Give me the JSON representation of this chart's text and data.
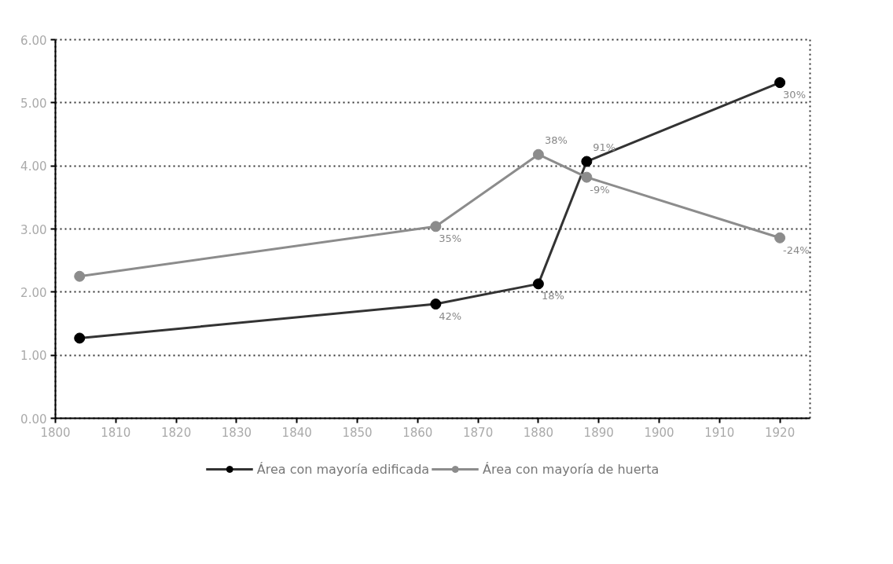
{
  "chart_data": {
    "type": "line",
    "x": [
      1804,
      1863,
      1880,
      1888,
      1920
    ],
    "series": [
      {
        "name": "Área con mayoría edificada",
        "color": "#333333",
        "values": [
          1.27,
          1.81,
          2.13,
          4.07,
          5.32
        ]
      },
      {
        "name": "Área con mayoría de huerta",
        "color": "#8c8c8c",
        "values": [
          2.25,
          3.04,
          4.18,
          3.82,
          2.86
        ]
      }
    ],
    "annotations": [
      {
        "text": "42%",
        "x": 1863,
        "y": 1.81
      },
      {
        "text": "18%",
        "x": 1880,
        "y": 2.13
      },
      {
        "text": "91%",
        "x": 1888,
        "y": 4.07
      },
      {
        "text": "30%",
        "x": 1920,
        "y": 5.32
      },
      {
        "text": "35%",
        "x": 1863,
        "y": 3.04
      },
      {
        "text": "38%",
        "x": 1880,
        "y": 4.18
      },
      {
        "text": "-9%",
        "x": 1888,
        "y": 3.82
      },
      {
        "text": "-24%",
        "x": 1920,
        "y": 2.86
      }
    ],
    "xlim": [
      1800,
      1925
    ],
    "xticks": [
      1800,
      1810,
      1820,
      1830,
      1840,
      1850,
      1860,
      1870,
      1880,
      1890,
      1900,
      1910,
      1920
    ],
    "ylim": [
      0,
      6
    ],
    "yticks": [
      {
        "value": 0,
        "label": "0.00"
      },
      {
        "value": 1,
        "label": "1.00"
      },
      {
        "value": 2,
        "label": "2.00"
      },
      {
        "value": 3,
        "label": "3.00"
      },
      {
        "value": 4,
        "label": "4.00"
      },
      {
        "value": 5,
        "label": "5.00"
      },
      {
        "value": 6,
        "label": "6.00"
      }
    ],
    "grid": "y",
    "legend": "bottom",
    "marker": "circle",
    "line_style": "solid"
  }
}
